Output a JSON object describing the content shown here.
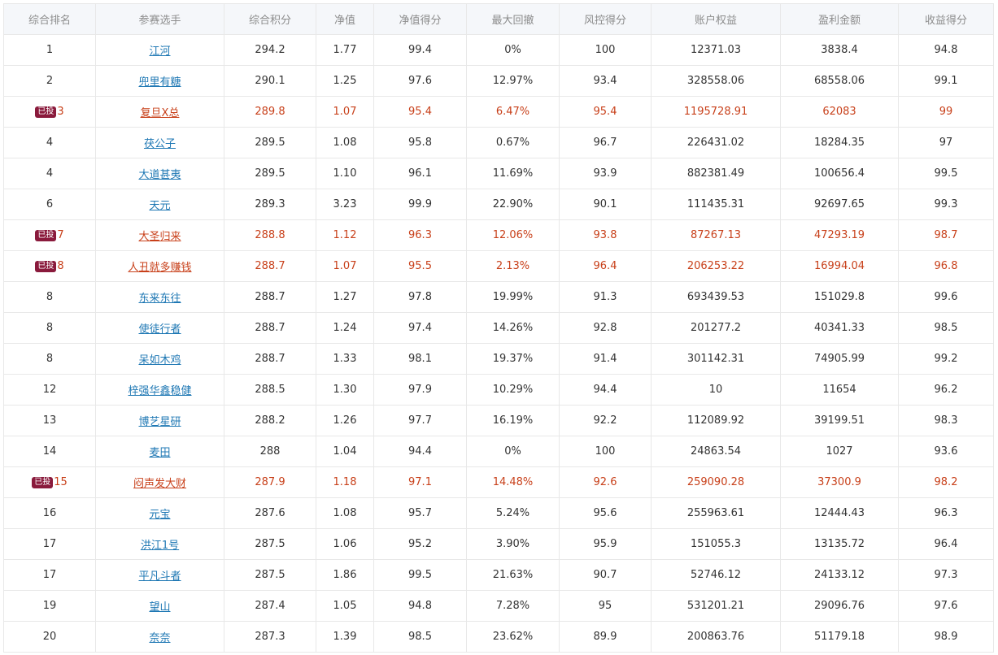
{
  "table": {
    "headers": [
      "综合排名",
      "参赛选手",
      "综合积分",
      "净值",
      "净值得分",
      "最大回撤",
      "风控得分",
      "账户权益",
      "盈利金额",
      "收益得分"
    ],
    "rows": [
      {
        "rank": "1",
        "badge": "",
        "player": "江河",
        "score": "294.2",
        "nav": "1.77",
        "nav_score": "99.4",
        "max_drawdown": "0%",
        "risk_score": "100",
        "equity": "12371.03",
        "profit": "3838.4",
        "return_score": "94.8"
      },
      {
        "rank": "2",
        "badge": "",
        "player": "兜里有糖",
        "score": "290.1",
        "nav": "1.25",
        "nav_score": "97.6",
        "max_drawdown": "12.97%",
        "risk_score": "93.4",
        "equity": "328558.06",
        "profit": "68558.06",
        "return_score": "99.1"
      },
      {
        "rank": "3",
        "badge": "已投",
        "player": "复旦X总",
        "score": "289.8",
        "nav": "1.07",
        "nav_score": "95.4",
        "max_drawdown": "6.47%",
        "risk_score": "95.4",
        "equity": "1195728.91",
        "profit": "62083",
        "return_score": "99"
      },
      {
        "rank": "4",
        "badge": "",
        "player": "茯公子",
        "score": "289.5",
        "nav": "1.08",
        "nav_score": "95.8",
        "max_drawdown": "0.67%",
        "risk_score": "96.7",
        "equity": "226431.02",
        "profit": "18284.35",
        "return_score": "97"
      },
      {
        "rank": "4",
        "badge": "",
        "player": "大道甚夷",
        "score": "289.5",
        "nav": "1.10",
        "nav_score": "96.1",
        "max_drawdown": "11.69%",
        "risk_score": "93.9",
        "equity": "882381.49",
        "profit": "100656.4",
        "return_score": "99.5"
      },
      {
        "rank": "6",
        "badge": "",
        "player": "天元",
        "score": "289.3",
        "nav": "3.23",
        "nav_score": "99.9",
        "max_drawdown": "22.90%",
        "risk_score": "90.1",
        "equity": "111435.31",
        "profit": "92697.65",
        "return_score": "99.3"
      },
      {
        "rank": "7",
        "badge": "已投",
        "player": "大圣归来",
        "score": "288.8",
        "nav": "1.12",
        "nav_score": "96.3",
        "max_drawdown": "12.06%",
        "risk_score": "93.8",
        "equity": "87267.13",
        "profit": "47293.19",
        "return_score": "98.7"
      },
      {
        "rank": "8",
        "badge": "已投",
        "player": "人丑就多赚钱",
        "score": "288.7",
        "nav": "1.07",
        "nav_score": "95.5",
        "max_drawdown": "2.13%",
        "risk_score": "96.4",
        "equity": "206253.22",
        "profit": "16994.04",
        "return_score": "96.8"
      },
      {
        "rank": "8",
        "badge": "",
        "player": "东来东往",
        "score": "288.7",
        "nav": "1.27",
        "nav_score": "97.8",
        "max_drawdown": "19.99%",
        "risk_score": "91.3",
        "equity": "693439.53",
        "profit": "151029.8",
        "return_score": "99.6"
      },
      {
        "rank": "8",
        "badge": "",
        "player": "使徒行者",
        "score": "288.7",
        "nav": "1.24",
        "nav_score": "97.4",
        "max_drawdown": "14.26%",
        "risk_score": "92.8",
        "equity": "201277.2",
        "profit": "40341.33",
        "return_score": "98.5"
      },
      {
        "rank": "8",
        "badge": "",
        "player": "呆如木鸡",
        "score": "288.7",
        "nav": "1.33",
        "nav_score": "98.1",
        "max_drawdown": "19.37%",
        "risk_score": "91.4",
        "equity": "301142.31",
        "profit": "74905.99",
        "return_score": "99.2"
      },
      {
        "rank": "12",
        "badge": "",
        "player": "梓强华鑫稳健",
        "score": "288.5",
        "nav": "1.30",
        "nav_score": "97.9",
        "max_drawdown": "10.29%",
        "risk_score": "94.4",
        "equity": "10",
        "profit": "11654",
        "return_score": "96.2"
      },
      {
        "rank": "13",
        "badge": "",
        "player": "博艺星研",
        "score": "288.2",
        "nav": "1.26",
        "nav_score": "97.7",
        "max_drawdown": "16.19%",
        "risk_score": "92.2",
        "equity": "112089.92",
        "profit": "39199.51",
        "return_score": "98.3"
      },
      {
        "rank": "14",
        "badge": "",
        "player": "麦田",
        "score": "288",
        "nav": "1.04",
        "nav_score": "94.4",
        "max_drawdown": "0%",
        "risk_score": "100",
        "equity": "24863.54",
        "profit": "1027",
        "return_score": "93.6"
      },
      {
        "rank": "15",
        "badge": "已投",
        "player": "闷声发大财",
        "score": "287.9",
        "nav": "1.18",
        "nav_score": "97.1",
        "max_drawdown": "14.48%",
        "risk_score": "92.6",
        "equity": "259090.28",
        "profit": "37300.9",
        "return_score": "98.2"
      },
      {
        "rank": "16",
        "badge": "",
        "player": "元宝",
        "score": "287.6",
        "nav": "1.08",
        "nav_score": "95.7",
        "max_drawdown": "5.24%",
        "risk_score": "95.6",
        "equity": "255963.61",
        "profit": "12444.43",
        "return_score": "96.3"
      },
      {
        "rank": "17",
        "badge": "",
        "player": "洪江1号",
        "score": "287.5",
        "nav": "1.06",
        "nav_score": "95.2",
        "max_drawdown": "3.90%",
        "risk_score": "95.9",
        "equity": "151055.3",
        "profit": "13135.72",
        "return_score": "96.4"
      },
      {
        "rank": "17",
        "badge": "",
        "player": "平凡斗者",
        "score": "287.5",
        "nav": "1.86",
        "nav_score": "99.5",
        "max_drawdown": "21.63%",
        "risk_score": "90.7",
        "equity": "52746.12",
        "profit": "24133.12",
        "return_score": "97.3"
      },
      {
        "rank": "19",
        "badge": "",
        "player": "望山",
        "score": "287.4",
        "nav": "1.05",
        "nav_score": "94.8",
        "max_drawdown": "7.28%",
        "risk_score": "95",
        "equity": "531201.21",
        "profit": "29096.76",
        "return_score": "97.6"
      },
      {
        "rank": "20",
        "badge": "",
        "player": "奈奈",
        "score": "287.3",
        "nav": "1.39",
        "nav_score": "98.5",
        "max_drawdown": "23.62%",
        "risk_score": "89.9",
        "equity": "200863.76",
        "profit": "51179.18",
        "return_score": "98.9"
      }
    ]
  }
}
